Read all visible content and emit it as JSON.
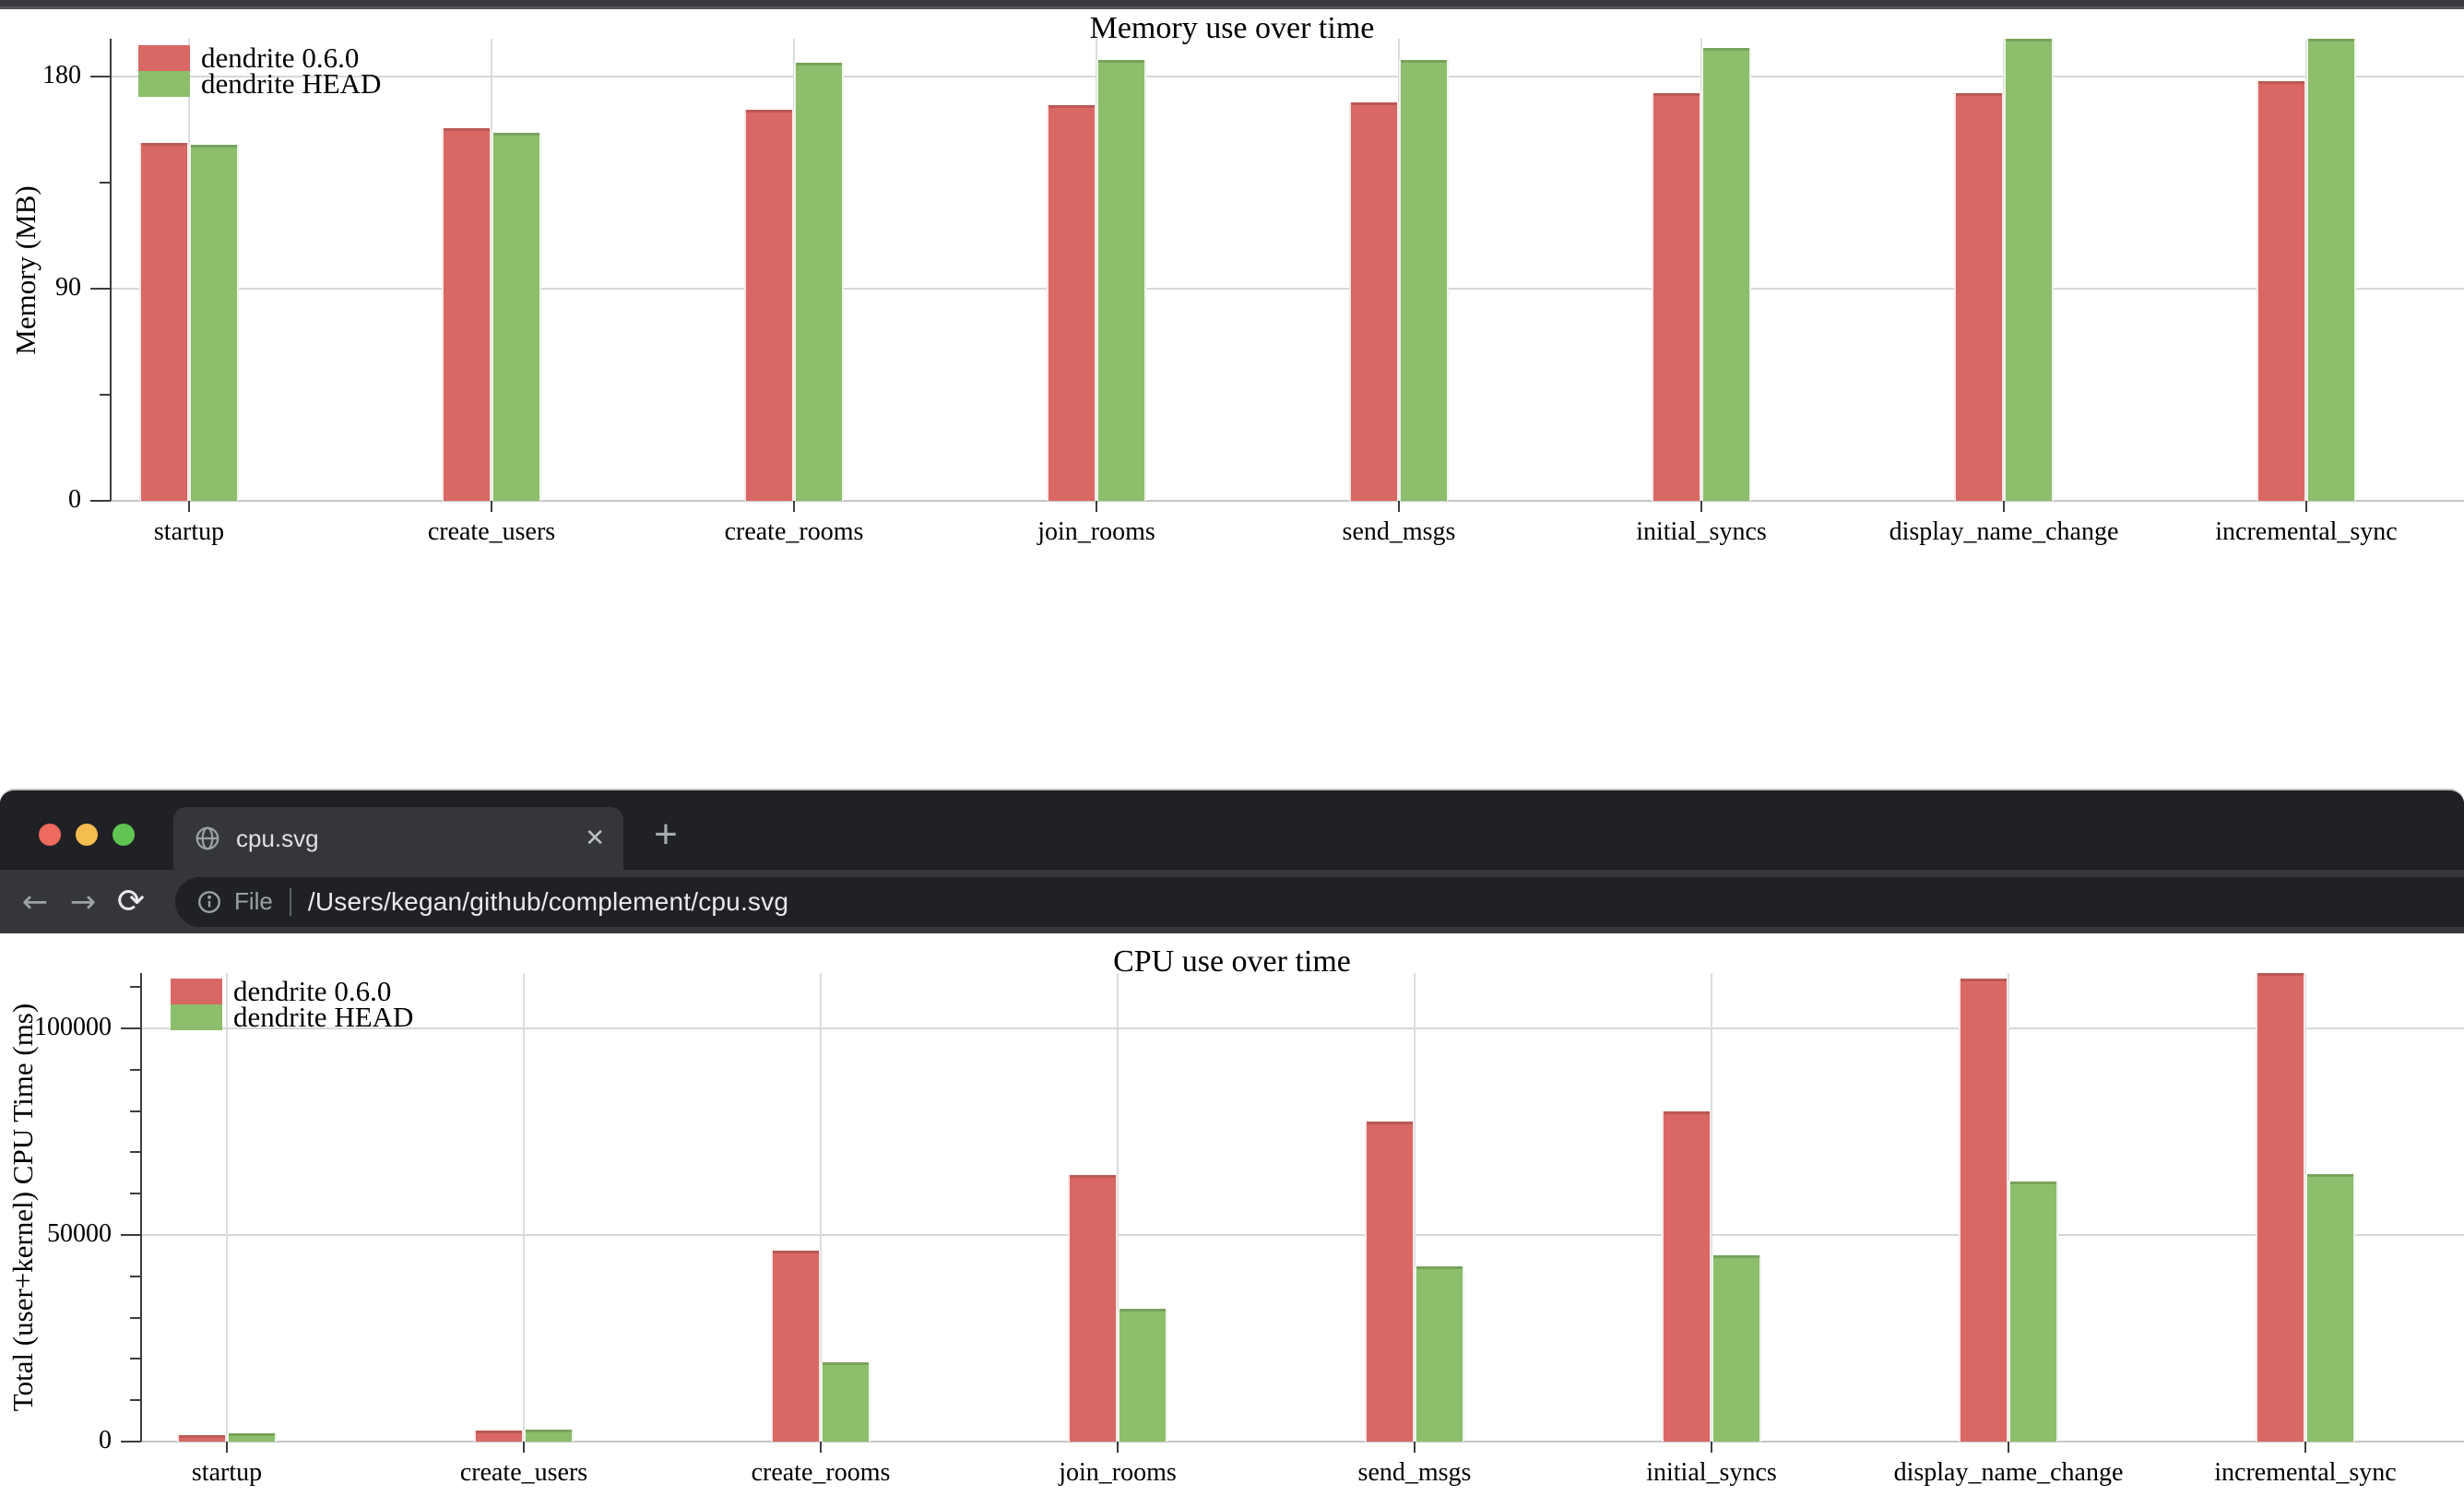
{
  "browser": {
    "tab_title": "cpu.svg",
    "address": {
      "scheme_label": "File",
      "url": "/Users/kegan/github/complement/cpu.svg"
    },
    "icons": {
      "back": "←",
      "forward": "→",
      "reload": "⟳",
      "close_tab": "✕",
      "new_tab": "+"
    },
    "traffic_lights": [
      "#ee6a5f",
      "#f5bd4f",
      "#61c554"
    ]
  },
  "chart_data": [
    {
      "type": "bar",
      "title": "Memory use over time",
      "ylabel": "Memory (MB)",
      "xlabel": "",
      "ylim": [
        0,
        196
      ],
      "yticks_major": [
        0,
        90,
        180
      ],
      "yticks_minor": [
        45,
        135
      ],
      "grid": true,
      "legend_position": "top-left",
      "categories": [
        "startup",
        "create_users",
        "create_rooms",
        "join_rooms",
        "send_msgs",
        "initial_syncs",
        "display_name_change",
        "incremental_sync"
      ],
      "series": [
        {
          "name": "dendrite 0.6.0",
          "color": "#d96865",
          "values": [
            152,
            158,
            166,
            168,
            169,
            173,
            173,
            178
          ]
        },
        {
          "name": "dendrite HEAD",
          "color": "#8cbe6c",
          "values": [
            151,
            156,
            186,
            187,
            187,
            192,
            196,
            196
          ]
        }
      ]
    },
    {
      "type": "bar",
      "title": "CPU use over time",
      "ylabel": "Total (user+kernel) CPU Time (ms)",
      "xlabel": "",
      "ylim": [
        0,
        113500
      ],
      "yticks_major": [
        0,
        50000,
        100000
      ],
      "yticks_minor": [
        10000,
        20000,
        30000,
        40000,
        60000,
        70000,
        80000,
        90000,
        110000
      ],
      "grid": true,
      "legend_position": "top-left",
      "categories": [
        "startup",
        "create_users",
        "create_rooms",
        "join_rooms",
        "send_msgs",
        "initial_syncs",
        "display_name_change",
        "incremental_sync"
      ],
      "series": [
        {
          "name": "dendrite 0.6.0",
          "color": "#d96865",
          "values": [
            1500,
            2700,
            46200,
            64500,
            77500,
            79900,
            112000,
            113400
          ]
        },
        {
          "name": "dendrite HEAD",
          "color": "#8cbe6c",
          "values": [
            2000,
            2900,
            19200,
            32100,
            42400,
            45100,
            63000,
            64700
          ]
        }
      ]
    }
  ]
}
